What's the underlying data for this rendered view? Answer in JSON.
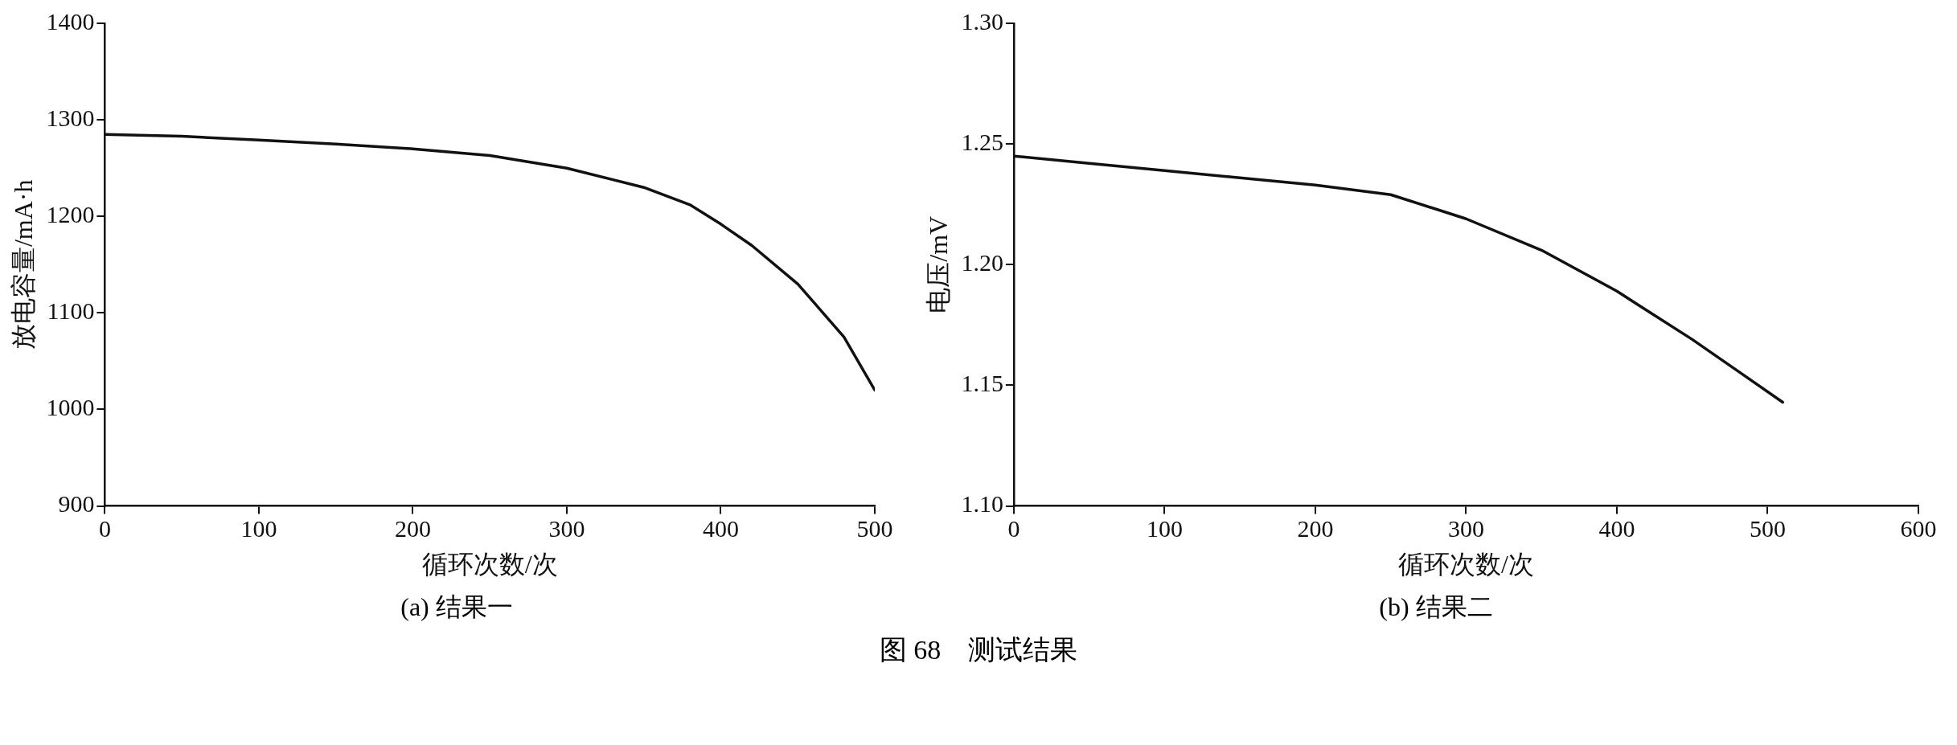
{
  "chart_data": [
    {
      "type": "line",
      "title": "(a) 结果一",
      "xlabel": "循环次数/次",
      "ylabel": "放电容量/mA·h",
      "xlim": [
        0,
        500
      ],
      "xticks": [
        0,
        100,
        200,
        300,
        400,
        500
      ],
      "ylim": [
        900,
        1400
      ],
      "yticks": [
        900,
        1000,
        1100,
        1200,
        1300,
        1400
      ],
      "grid": false,
      "legend": false,
      "marker": "none",
      "line_style": "solid",
      "series": [
        {
          "color": "#111111",
          "x": [
            0,
            50,
            100,
            150,
            200,
            250,
            300,
            350,
            380,
            400,
            420,
            450,
            480,
            500
          ],
          "values": [
            1285,
            1283,
            1279,
            1275,
            1270,
            1263,
            1250,
            1230,
            1212,
            1192,
            1170,
            1130,
            1075,
            1020
          ]
        }
      ]
    },
    {
      "type": "line",
      "title": "(b) 结果二",
      "xlabel": "循环次数/次",
      "ylabel": "电压/mV",
      "xlim": [
        0,
        600
      ],
      "xticks": [
        0,
        100,
        200,
        300,
        400,
        500,
        600
      ],
      "ylim": [
        1.1,
        1.3
      ],
      "yticks": [
        {
          "value": 1.1,
          "label": "1.10"
        },
        {
          "value": 1.15,
          "label": "1.15"
        },
        {
          "value": 1.2,
          "label": "1.20"
        },
        {
          "value": 1.25,
          "label": "1.25"
        },
        {
          "value": 1.3,
          "label": "1.30"
        }
      ],
      "grid": false,
      "legend": false,
      "marker": "none",
      "line_style": "solid",
      "annotations": [
        "图 68　测试结果"
      ],
      "series": [
        {
          "color": "#111111",
          "x": [
            0,
            50,
            100,
            150,
            200,
            250,
            300,
            350,
            400,
            450,
            480,
            510
          ],
          "values": [
            1.245,
            1.242,
            1.239,
            1.236,
            1.233,
            1.229,
            1.219,
            1.206,
            1.189,
            1.169,
            1.156,
            1.143
          ]
        }
      ]
    }
  ]
}
